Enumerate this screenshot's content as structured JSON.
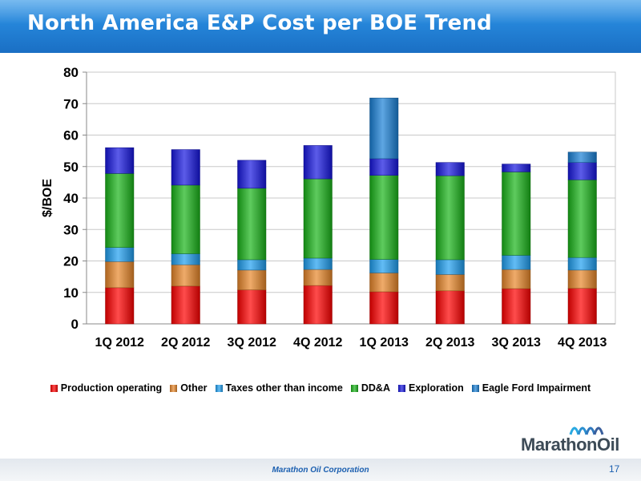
{
  "header": {
    "title": "North America E&P Cost per BOE Trend"
  },
  "chart_data": {
    "type": "bar",
    "stacked": true,
    "categories": [
      "1Q 2012",
      "2Q 2012",
      "3Q 2012",
      "4Q 2012",
      "1Q 2013",
      "2Q 2013",
      "3Q 2013",
      "4Q 2013"
    ],
    "series": [
      {
        "name": "Production operating",
        "color": "#ff0000",
        "values": [
          11.5,
          12.0,
          10.8,
          12.2,
          10.2,
          10.5,
          11.2,
          11.3
        ]
      },
      {
        "name": "Other",
        "color": "#e8872a",
        "values": [
          8.3,
          6.8,
          6.3,
          5.1,
          6.0,
          5.2,
          6.1,
          5.8
        ]
      },
      {
        "name": "Taxes other than income",
        "color": "#1f9ff0",
        "values": [
          4.5,
          3.5,
          3.3,
          3.6,
          4.3,
          4.7,
          4.5,
          4.0
        ]
      },
      {
        "name": "DD&A",
        "color": "#19b419",
        "values": [
          23.5,
          21.8,
          22.7,
          25.2,
          26.7,
          26.7,
          26.5,
          24.7
        ]
      },
      {
        "name": "Exploration",
        "color": "#1616e0",
        "values": [
          8.2,
          11.3,
          8.9,
          10.6,
          5.3,
          4.2,
          2.5,
          5.5
        ]
      },
      {
        "name": "Eagle Ford Impairment",
        "color": "#1980d6",
        "values": [
          0,
          0,
          0,
          0,
          19.3,
          0,
          0,
          3.3
        ]
      }
    ],
    "ylabel": "$/BOE",
    "xlabel": "",
    "ylim": [
      0,
      80
    ],
    "yticks": [
      0,
      10,
      20,
      30,
      40,
      50,
      60,
      70,
      80
    ],
    "grid": true,
    "legend_position": "bottom"
  },
  "footer": {
    "company": "Marathon Oil Corporation",
    "page": "17"
  },
  "logo": {
    "text": "MarathonOil"
  }
}
